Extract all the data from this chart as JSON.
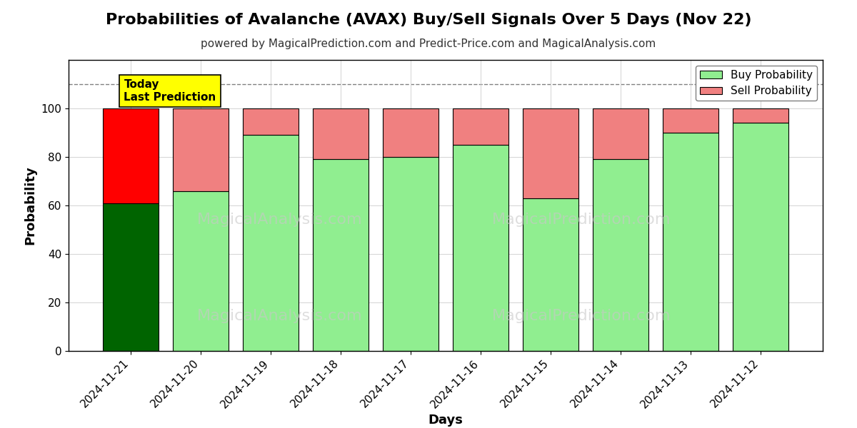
{
  "title": "Probabilities of Avalanche (AVAX) Buy/Sell Signals Over 5 Days (Nov 22)",
  "subtitle": "powered by MagicalPrediction.com and Predict-Price.com and MagicalAnalysis.com",
  "xlabel": "Days",
  "ylabel": "Probability",
  "dates": [
    "2024-11-21",
    "2024-11-20",
    "2024-11-19",
    "2024-11-18",
    "2024-11-17",
    "2024-11-16",
    "2024-11-15",
    "2024-11-14",
    "2024-11-13",
    "2024-11-12"
  ],
  "buy_values": [
    61,
    66,
    89,
    79,
    80,
    85,
    63,
    79,
    90,
    94
  ],
  "sell_values": [
    39,
    34,
    11,
    21,
    20,
    15,
    37,
    21,
    10,
    6
  ],
  "today_bar_buy_color": "#006400",
  "today_bar_sell_color": "#FF0000",
  "normal_buy_color": "#90EE90",
  "normal_sell_color": "#F08080",
  "bar_edgecolor": "#000000",
  "background_color": "#ffffff",
  "plot_bg_color": "#ffffff",
  "legend_buy_color": "#90EE90",
  "legend_sell_color": "#F08080",
  "today_label_bg": "#FFFF00",
  "dashed_line_y": 110,
  "ylim": [
    0,
    120
  ],
  "yticks": [
    0,
    20,
    40,
    60,
    80,
    100
  ],
  "title_fontsize": 16,
  "subtitle_fontsize": 11,
  "axis_label_fontsize": 13,
  "tick_fontsize": 11,
  "legend_fontsize": 11,
  "watermark_color": "#cccccc"
}
